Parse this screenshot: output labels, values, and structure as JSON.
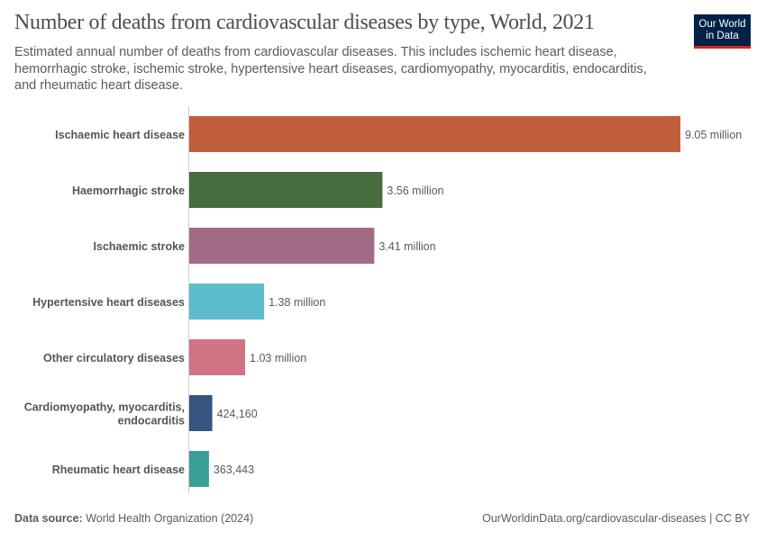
{
  "header": {
    "title": "Number of deaths from cardiovascular diseases by type, World, 2021",
    "subtitle": "Estimated annual number of deaths from cardiovascular diseases. This includes ischemic heart disease, hemorrhagic stroke, ischemic stroke, hypertensive heart diseases, cardiomyopathy, myocarditis, endocarditis, and rheumatic heart disease.",
    "logo_line1": "Our World",
    "logo_line2": "in Data"
  },
  "footer": {
    "source_label": "Data source:",
    "source": " World Health Organization (2024)",
    "url": "OurWorldinData.org/cardiovascular-diseases | CC BY"
  },
  "chart_data": {
    "type": "bar",
    "orientation": "horizontal",
    "title": "Number of deaths from cardiovascular diseases by type, World, 2021",
    "categories": [
      [
        "Ischaemic heart disease"
      ],
      [
        "Haemorrhagic stroke"
      ],
      [
        "Ischaemic stroke"
      ],
      [
        "Hypertensive heart diseases"
      ],
      [
        "Other circulatory diseases"
      ],
      [
        "Cardiomyopathy, myocarditis,",
        "endocarditis"
      ],
      [
        "Rheumatic heart disease"
      ]
    ],
    "values": [
      9050000,
      3560000,
      3410000,
      1380000,
      1030000,
      424160,
      363443
    ],
    "labels": [
      "9.05 million",
      "3.56 million",
      "3.41 million",
      "1.38 million",
      "1.03 million",
      "424,160",
      "363,443"
    ],
    "colors": [
      "#c15e3a",
      "#466c3f",
      "#a26a87",
      "#5ebdcb",
      "#d07385",
      "#355580",
      "#3a9f99"
    ],
    "grid": false
  }
}
